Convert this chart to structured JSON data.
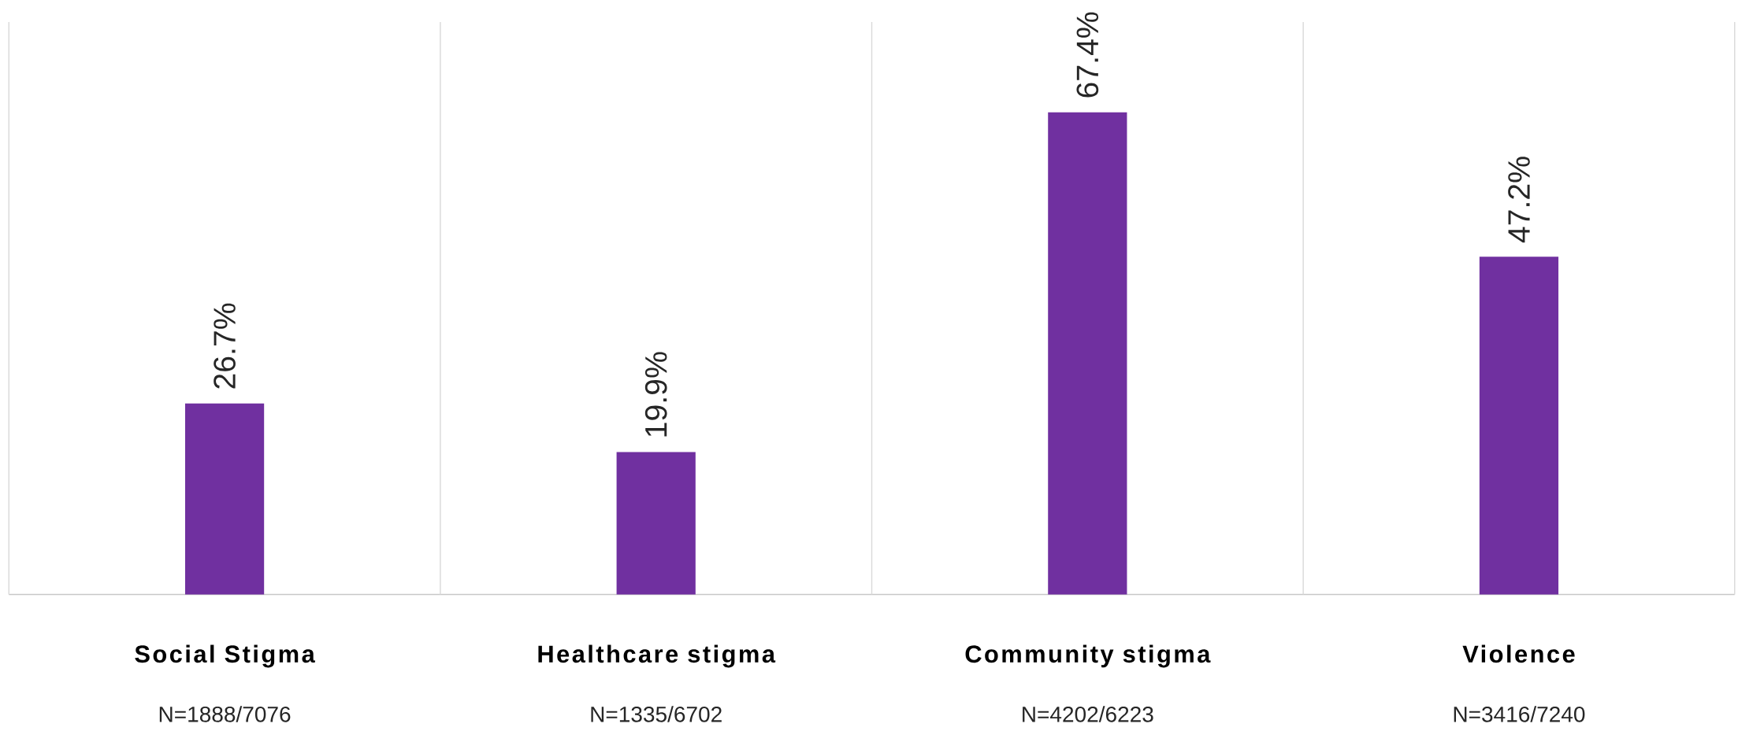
{
  "chart_data": {
    "type": "bar",
    "categories": [
      "Social Stigma",
      "Healthcare stigma",
      "Community stigma",
      "Violence"
    ],
    "values": [
      26.7,
      19.9,
      67.4,
      47.2
    ],
    "value_labels": [
      "26.7%",
      "19.9%",
      "67.4%",
      "47.2%"
    ],
    "color": "#7030a0",
    "ylim": [
      0,
      80
    ],
    "tick_labels": "x",
    "grid": "x",
    "annotations": [
      "N=1888/7076",
      "N=1335/6702",
      "N=4202/6223",
      "N=3416/7240"
    ]
  }
}
